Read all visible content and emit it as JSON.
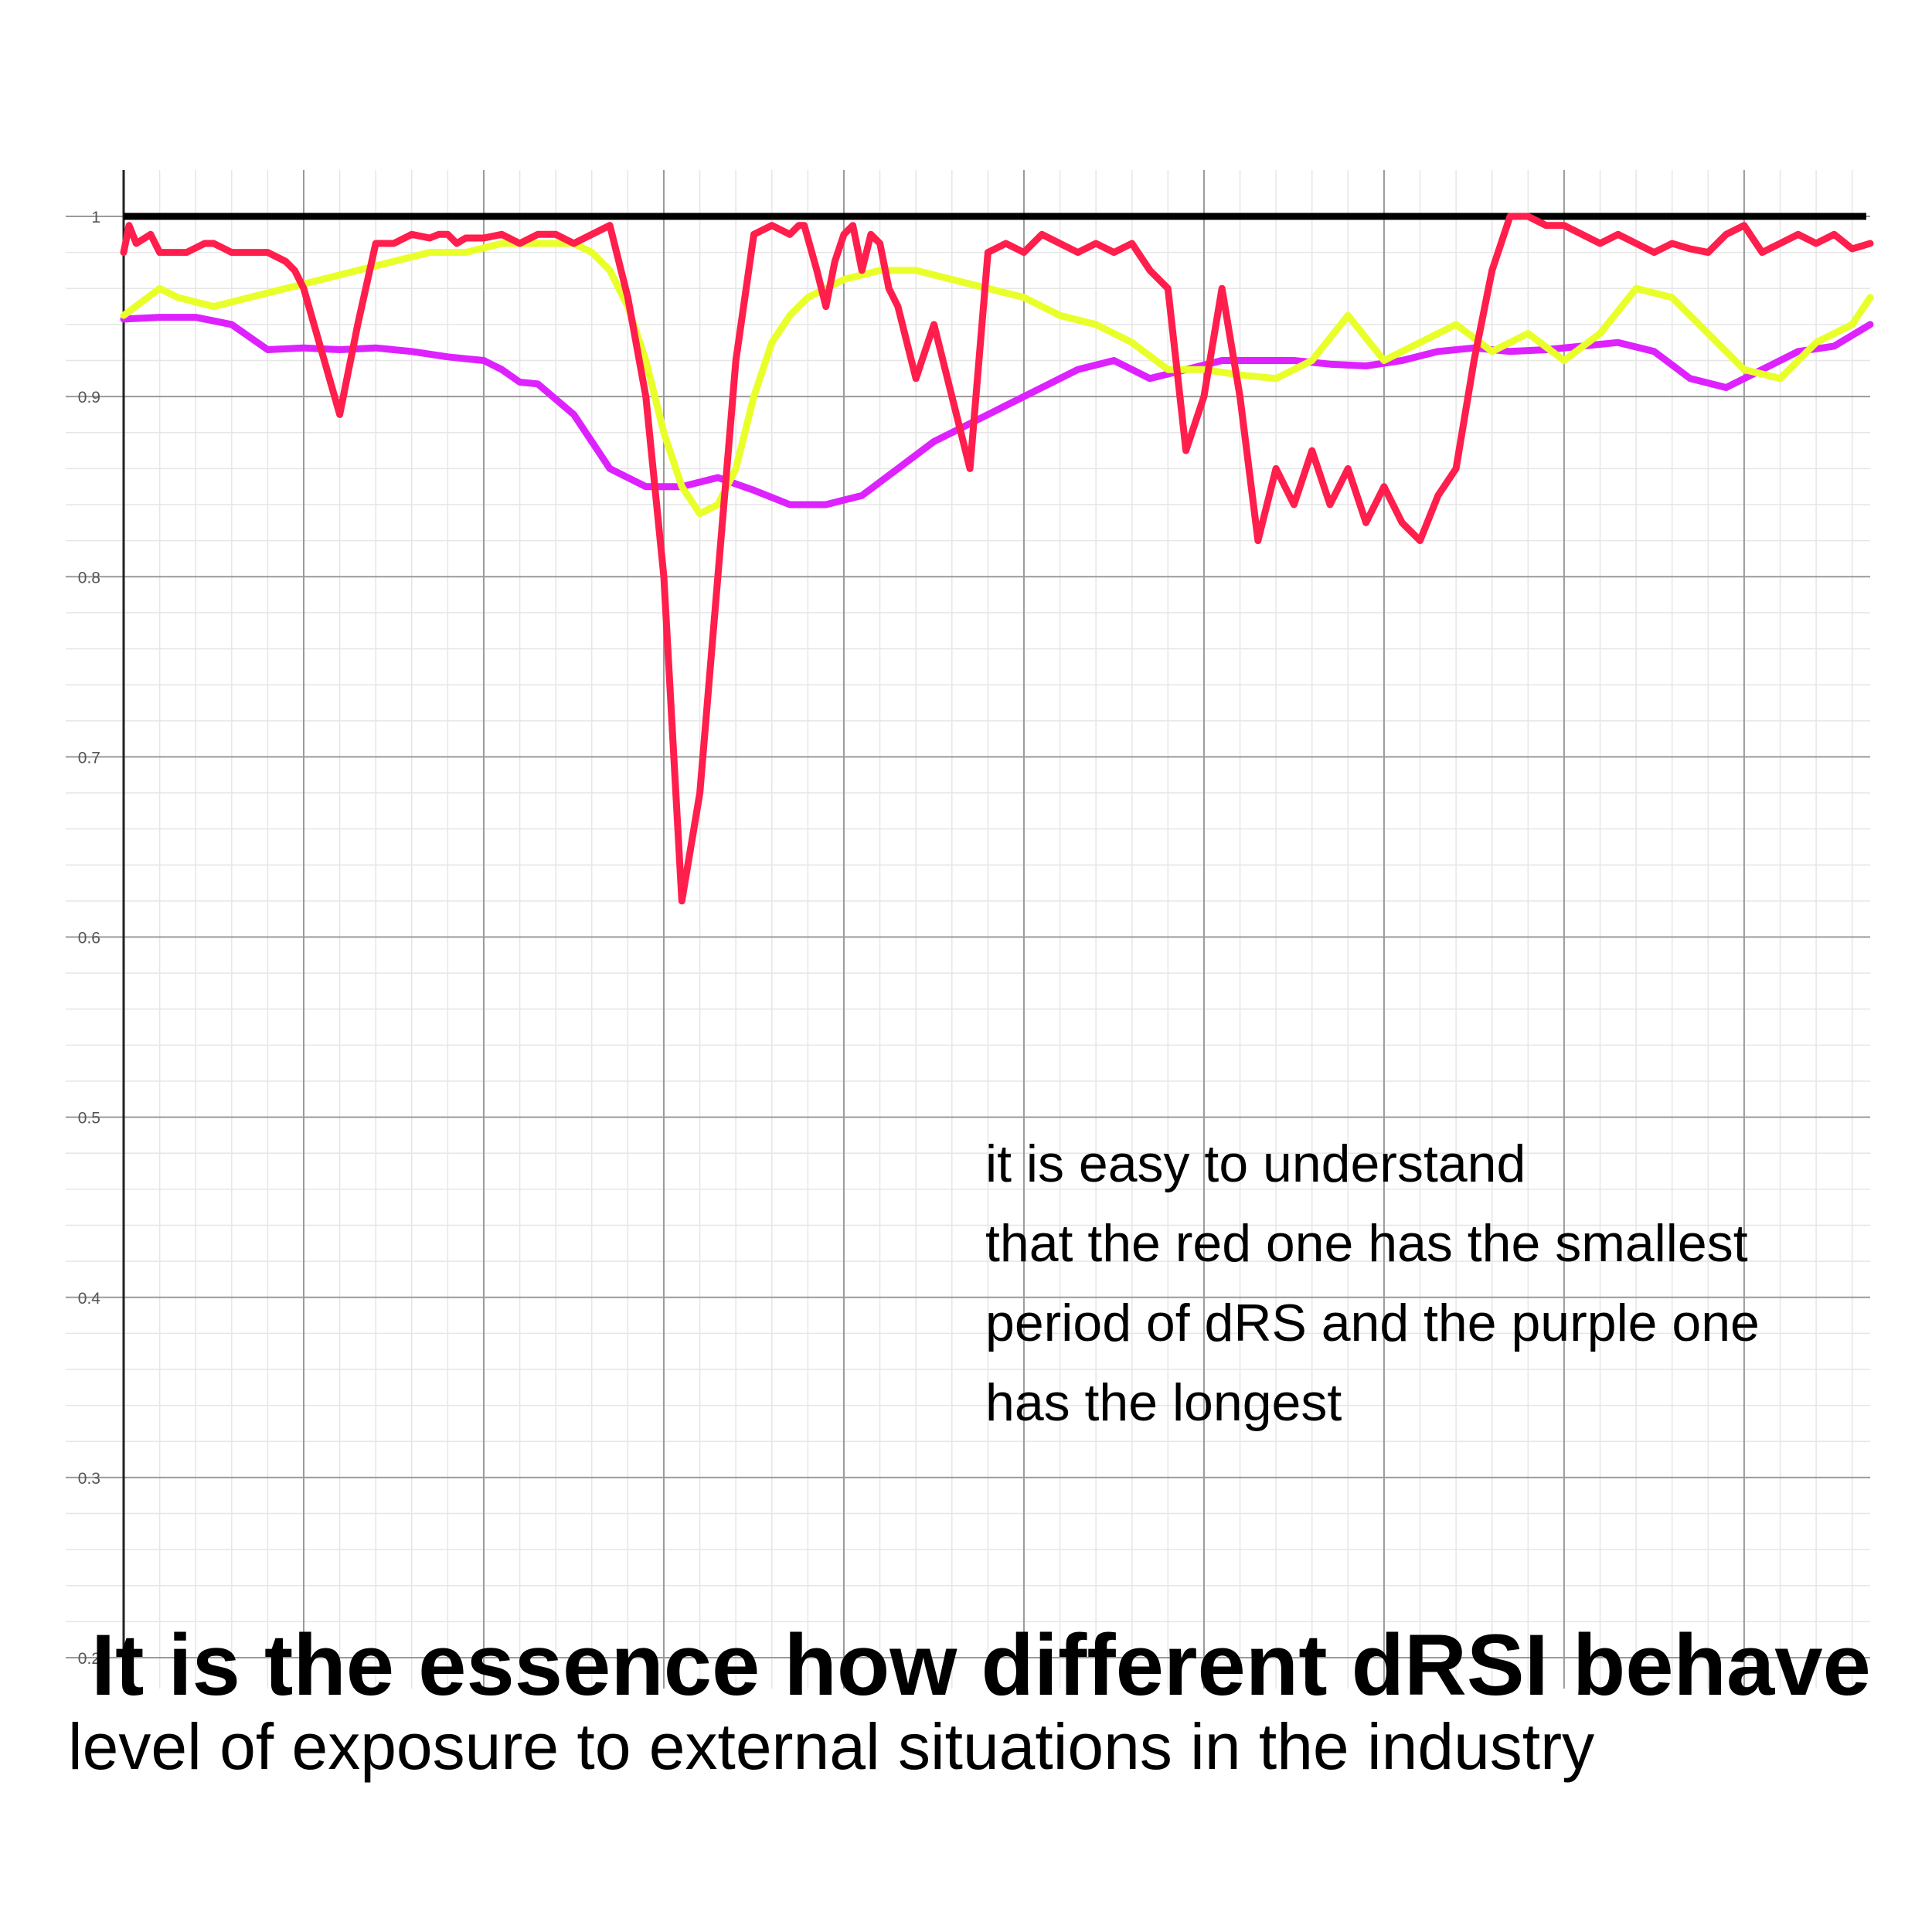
{
  "title": "It is the essence how different dRSI behave",
  "subtitle": "level of exposure to external situations in the industry",
  "annotation_lines": [
    "it is easy to understand",
    "that the red one has the smallest",
    "period of dRS and the purple one",
    "has the longest"
  ],
  "chart_data": {
    "type": "line",
    "title": "",
    "xlabel": "",
    "ylabel": "",
    "xlim": [
      0,
      9.7
    ],
    "ylim": [
      0.2,
      1.0
    ],
    "y_ticks": [
      "0.2",
      "0.3",
      "0.4",
      "0.5",
      "0.6",
      "0.7",
      "0.8",
      "0.9",
      "1"
    ],
    "grid": true,
    "reference_line": {
      "y": 1.0,
      "color": "#000000"
    },
    "series": [
      {
        "color": "#ff1e4c",
        "x": [
          0.0,
          0.03,
          0.07,
          0.15,
          0.2,
          0.25,
          0.35,
          0.45,
          0.5,
          0.6,
          0.7,
          0.8,
          0.9,
          0.95,
          1.0,
          1.1,
          1.2,
          1.3,
          1.4,
          1.5,
          1.6,
          1.7,
          1.75,
          1.8,
          1.85,
          1.9,
          2.0,
          2.1,
          2.2,
          2.3,
          2.4,
          2.5,
          2.6,
          2.7,
          2.8,
          2.9,
          3.0,
          3.1,
          3.2,
          3.3,
          3.4,
          3.5,
          3.6,
          3.7,
          3.75,
          3.78,
          3.85,
          3.9,
          3.95,
          4.0,
          4.05,
          4.1,
          4.15,
          4.2,
          4.25,
          4.3,
          4.4,
          4.5,
          4.6,
          4.7,
          4.8,
          4.9,
          5.0,
          5.1,
          5.2,
          5.3,
          5.4,
          5.5,
          5.6,
          5.7,
          5.8,
          5.9,
          6.0,
          6.1,
          6.2,
          6.3,
          6.4,
          6.5,
          6.6,
          6.7,
          6.8,
          6.9,
          7.0,
          7.1,
          7.2,
          7.3,
          7.4,
          7.5,
          7.6,
          7.7,
          7.8,
          7.9,
          8.0,
          8.1,
          8.2,
          8.3,
          8.4,
          8.5,
          8.6,
          8.7,
          8.8,
          8.9,
          9.0,
          9.1,
          9.2,
          9.3,
          9.4,
          9.5,
          9.6,
          9.7
        ],
        "y": [
          0.98,
          0.995,
          0.985,
          0.99,
          0.98,
          0.98,
          0.98,
          0.985,
          0.985,
          0.98,
          0.98,
          0.98,
          0.975,
          0.97,
          0.96,
          0.925,
          0.89,
          0.94,
          0.985,
          0.985,
          0.99,
          0.988,
          0.99,
          0.99,
          0.985,
          0.988,
          0.988,
          0.99,
          0.985,
          0.99,
          0.99,
          0.985,
          0.99,
          0.995,
          0.955,
          0.9,
          0.8,
          0.62,
          0.68,
          0.8,
          0.92,
          0.99,
          0.995,
          0.99,
          0.995,
          0.995,
          0.97,
          0.95,
          0.975,
          0.99,
          0.995,
          0.97,
          0.99,
          0.985,
          0.96,
          0.95,
          0.91,
          0.94,
          0.9,
          0.86,
          0.98,
          0.985,
          0.98,
          0.99,
          0.985,
          0.98,
          0.985,
          0.98,
          0.985,
          0.97,
          0.96,
          0.87,
          0.9,
          0.96,
          0.9,
          0.82,
          0.86,
          0.84,
          0.87,
          0.84,
          0.86,
          0.83,
          0.85,
          0.83,
          0.82,
          0.845,
          0.86,
          0.92,
          0.97,
          1.0,
          1.0,
          0.995,
          0.995,
          0.99,
          0.985,
          0.99,
          0.985,
          0.98,
          0.985,
          0.982,
          0.98,
          0.99,
          0.995,
          0.98,
          0.985,
          0.99,
          0.985,
          0.99,
          0.982,
          0.985
        ]
      },
      {
        "color": "#e8ff2a",
        "x": [
          0.0,
          0.2,
          0.3,
          0.5,
          0.7,
          0.9,
          1.1,
          1.3,
          1.5,
          1.7,
          1.9,
          2.1,
          2.3,
          2.5,
          2.6,
          2.7,
          2.8,
          2.9,
          3.0,
          3.1,
          3.2,
          3.3,
          3.4,
          3.5,
          3.6,
          3.7,
          3.8,
          4.0,
          4.2,
          4.4,
          4.6,
          4.8,
          5.0,
          5.2,
          5.4,
          5.6,
          5.8,
          6.0,
          6.2,
          6.4,
          6.6,
          6.8,
          7.0,
          7.2,
          7.4,
          7.6,
          7.8,
          8.0,
          8.2,
          8.4,
          8.6,
          8.8,
          9.0,
          9.2,
          9.4,
          9.6,
          9.7
        ],
        "y": [
          0.945,
          0.96,
          0.955,
          0.95,
          0.955,
          0.96,
          0.965,
          0.97,
          0.975,
          0.98,
          0.98,
          0.985,
          0.985,
          0.985,
          0.98,
          0.97,
          0.95,
          0.92,
          0.88,
          0.85,
          0.835,
          0.84,
          0.86,
          0.9,
          0.93,
          0.945,
          0.955,
          0.965,
          0.97,
          0.97,
          0.965,
          0.96,
          0.955,
          0.945,
          0.94,
          0.93,
          0.915,
          0.915,
          0.912,
          0.91,
          0.92,
          0.945,
          0.92,
          0.93,
          0.94,
          0.925,
          0.935,
          0.92,
          0.935,
          0.96,
          0.955,
          0.935,
          0.915,
          0.91,
          0.93,
          0.94,
          0.955
        ]
      },
      {
        "color": "#dd22ff",
        "x": [
          0.0,
          0.2,
          0.4,
          0.6,
          0.8,
          1.0,
          1.2,
          1.4,
          1.6,
          1.8,
          1.9,
          2.0,
          2.1,
          2.2,
          2.3,
          2.5,
          2.7,
          2.9,
          3.1,
          3.3,
          3.5,
          3.7,
          3.9,
          4.1,
          4.3,
          4.5,
          4.7,
          4.9,
          5.1,
          5.3,
          5.5,
          5.7,
          5.9,
          6.1,
          6.3,
          6.5,
          6.7,
          6.9,
          7.1,
          7.3,
          7.5,
          7.7,
          7.9,
          8.1,
          8.3,
          8.5,
          8.7,
          8.9,
          9.1,
          9.3,
          9.5,
          9.7
        ],
        "y": [
          0.943,
          0.944,
          0.944,
          0.94,
          0.926,
          0.927,
          0.926,
          0.927,
          0.925,
          0.922,
          0.921,
          0.92,
          0.915,
          0.908,
          0.907,
          0.89,
          0.86,
          0.85,
          0.85,
          0.855,
          0.848,
          0.84,
          0.84,
          0.845,
          0.86,
          0.875,
          0.885,
          0.895,
          0.905,
          0.915,
          0.92,
          0.91,
          0.915,
          0.92,
          0.92,
          0.92,
          0.918,
          0.917,
          0.92,
          0.925,
          0.927,
          0.925,
          0.926,
          0.928,
          0.93,
          0.925,
          0.91,
          0.905,
          0.915,
          0.925,
          0.928,
          0.94
        ]
      }
    ]
  }
}
